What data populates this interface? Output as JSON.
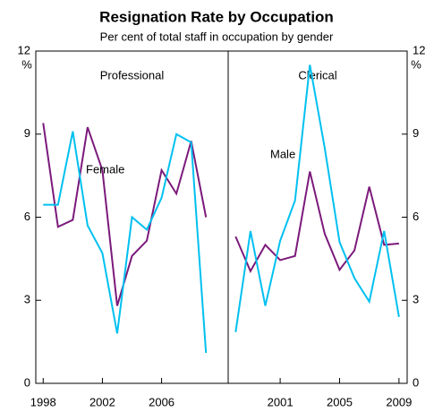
{
  "chart_data": [
    {
      "type": "line",
      "title": "Resignation Rate by Occupation",
      "subtitle": "Per cent of total staff in occupation by gender",
      "panel_title": "Professional",
      "ylabel": "%",
      "x": [
        1998,
        1999,
        2000,
        2001,
        2002,
        2003,
        2004,
        2005,
        2006,
        2007,
        2008,
        2009
      ],
      "xlim": [
        1997.5,
        2010.5
      ],
      "xticks": [
        1998,
        2002,
        2006
      ],
      "ylim": [
        0,
        12
      ],
      "yticks": [
        0,
        3,
        6,
        9,
        12
      ],
      "series": [
        {
          "name": "Female",
          "color": "#7b1a7b",
          "values": [
            9.4,
            5.65,
            5.9,
            9.25,
            7.7,
            2.8,
            4.6,
            5.15,
            7.7,
            6.85,
            8.75,
            6.0
          ]
        },
        {
          "color": "#00c0f0",
          "values": [
            6.45,
            6.45,
            9.1,
            5.7,
            4.7,
            1.8,
            6.0,
            5.55,
            6.7,
            9.0,
            8.7,
            1.1
          ]
        }
      ]
    },
    {
      "type": "line",
      "panel_title": "Clerical",
      "ylabel": "%",
      "x": [
        1998,
        1999,
        2000,
        2001,
        2002,
        2003,
        2004,
        2005,
        2006,
        2007,
        2008,
        2009
      ],
      "xlim": [
        1997.5,
        2009.55
      ],
      "xticks": [
        2001,
        2005,
        2009
      ],
      "ylim": [
        0,
        12
      ],
      "yticks": [
        0,
        3,
        6,
        9,
        12
      ],
      "series": [
        {
          "color": "#7b1a7b",
          "values": [
            5.3,
            4.05,
            5.0,
            4.45,
            4.6,
            7.65,
            5.4,
            4.1,
            4.8,
            7.1,
            5.0,
            5.05
          ]
        },
        {
          "name": "Male",
          "color": "#00c0f0",
          "values": [
            1.85,
            5.5,
            2.8,
            5.15,
            6.6,
            11.5,
            8.5,
            5.1,
            3.8,
            2.95,
            5.5,
            2.4
          ]
        }
      ]
    }
  ]
}
